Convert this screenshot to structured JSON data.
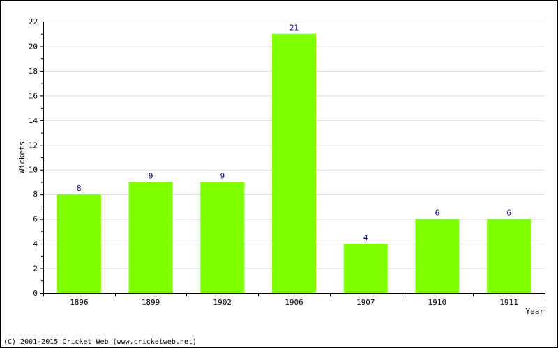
{
  "chart_data": {
    "type": "bar",
    "categories": [
      "1896",
      "1899",
      "1902",
      "1906",
      "1907",
      "1910",
      "1911"
    ],
    "values": [
      8,
      9,
      9,
      21,
      4,
      6,
      6
    ],
    "data_labels": [
      "8",
      "9",
      "9",
      "21",
      "4",
      "6",
      "6"
    ],
    "xlabel": "Year",
    "ylabel": "Wickets",
    "ylim": [
      0,
      22
    ],
    "yticks": [
      0,
      2,
      4,
      6,
      8,
      10,
      12,
      14,
      16,
      18,
      20,
      22
    ],
    "ytick_labels": [
      "0",
      "2",
      "4",
      "6",
      "8",
      "10",
      "12",
      "14",
      "16",
      "18",
      "20",
      "22"
    ],
    "grid": true,
    "colors": {
      "bar": "#80ff00",
      "data_label": "#000080",
      "grid": "#dddddd",
      "axis": "#000000"
    }
  },
  "footer": {
    "copyright": "(C) 2001-2015 Cricket Web (www.cricketweb.net)"
  }
}
